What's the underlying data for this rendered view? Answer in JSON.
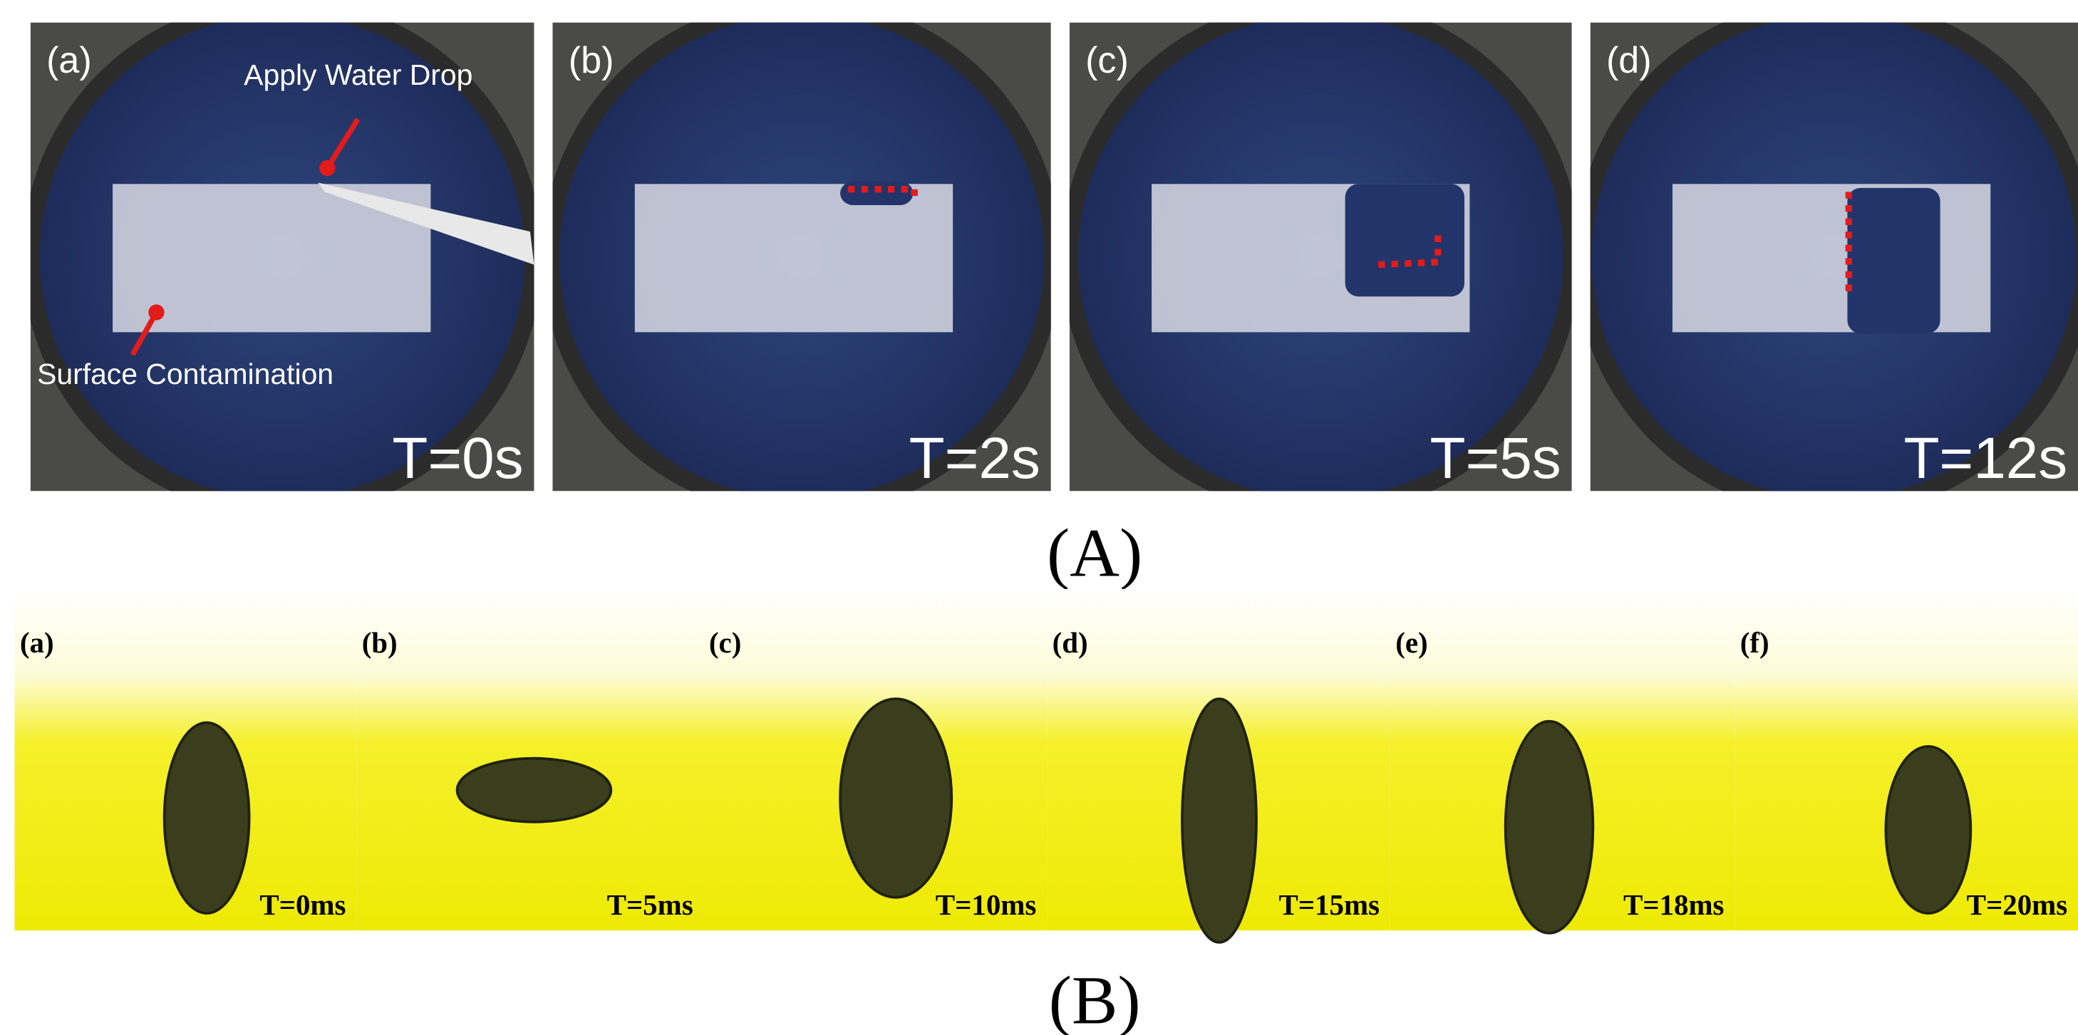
{
  "panel_A": {
    "caption": "(A)",
    "annotations": {
      "water_drop": "Apply Water Drop",
      "contamination": "Surface Contamination"
    },
    "panels": [
      {
        "label": "(a)",
        "time": "T=0s"
      },
      {
        "label": "(b)",
        "time": "T=2s"
      },
      {
        "label": "(c)",
        "time": "T=5s"
      },
      {
        "label": "(d)",
        "time": "T=12s"
      }
    ]
  },
  "panel_B": {
    "caption": "(B)",
    "panels": [
      {
        "label": "(a)",
        "time": "T=0ms"
      },
      {
        "label": "(b)",
        "time": "T=5ms"
      },
      {
        "label": "(c)",
        "time": "T=10ms"
      },
      {
        "label": "(d)",
        "time": "T=15ms"
      },
      {
        "label": "(e)",
        "time": "T=18ms"
      },
      {
        "label": "(f)",
        "time": "T=20ms"
      }
    ]
  }
}
